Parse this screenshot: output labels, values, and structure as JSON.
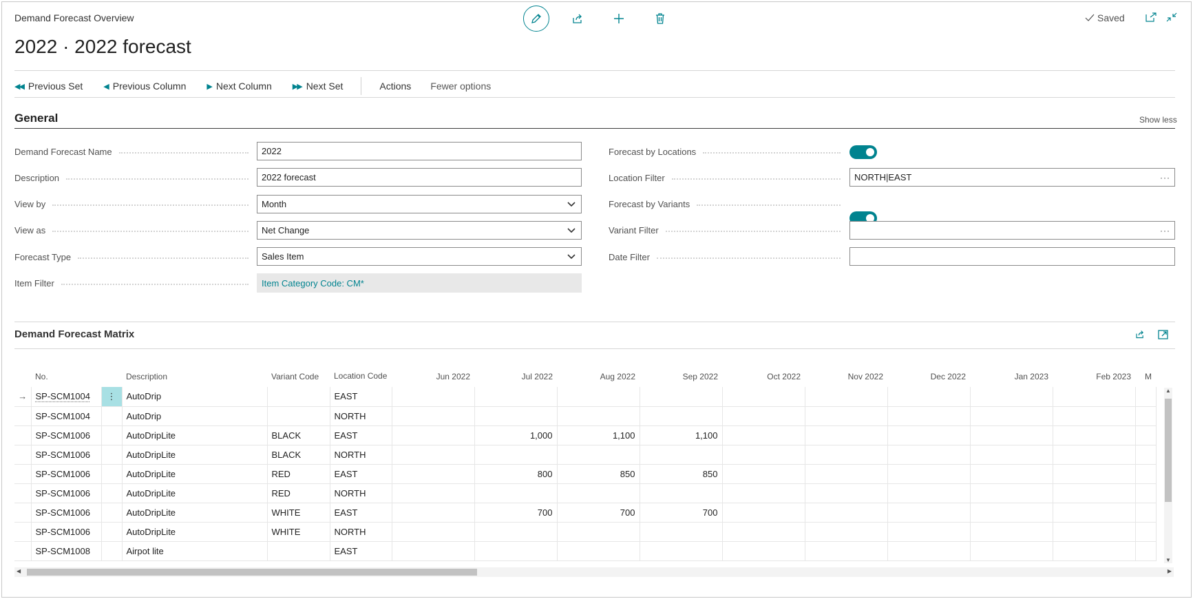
{
  "header": {
    "caption": "Demand Forecast Overview",
    "title": "2022 · 2022 forecast",
    "saved_label": "Saved"
  },
  "actions": {
    "previous_set": "Previous Set",
    "previous_column": "Previous Column",
    "next_column": "Next Column",
    "next_set": "Next Set",
    "actions": "Actions",
    "fewer_options": "Fewer options"
  },
  "general": {
    "title": "General",
    "show_less": "Show less",
    "left": [
      {
        "label": "Demand Forecast Name",
        "value": "2022",
        "kind": "text"
      },
      {
        "label": "Description",
        "value": "2022 forecast",
        "kind": "text"
      },
      {
        "label": "View by",
        "value": "Month",
        "kind": "select"
      },
      {
        "label": "View as",
        "value": "Net Change",
        "kind": "select"
      },
      {
        "label": "Forecast Type",
        "value": "Sales Item",
        "kind": "select"
      },
      {
        "label": "Item Filter",
        "value": "Item Category Code: CM*",
        "kind": "readonly"
      }
    ],
    "right": [
      {
        "label": "Forecast by Locations",
        "value": "on",
        "kind": "toggle"
      },
      {
        "label": "Location Filter",
        "value": "NORTH|EAST",
        "kind": "lookup"
      },
      {
        "label": "Forecast by Variants",
        "value": "on",
        "kind": "toggle"
      },
      {
        "label": "Variant Filter",
        "value": "",
        "kind": "lookup"
      },
      {
        "label": "Date Filter",
        "value": "",
        "kind": "text"
      }
    ]
  },
  "matrix": {
    "title": "Demand Forecast Matrix",
    "columns": {
      "no": "No.",
      "description": "Description",
      "variant": "Variant Code",
      "location": "Location Code",
      "months": [
        "Jun 2022",
        "Jul 2022",
        "Aug 2022",
        "Sep 2022",
        "Oct 2022",
        "Nov 2022",
        "Dec 2022",
        "Jan 2023",
        "Feb 2023",
        "M"
      ]
    },
    "rows": [
      {
        "no": "SP-SCM1004",
        "description": "AutoDrip",
        "variant": "",
        "location": "EAST",
        "values": [
          "",
          "",
          "",
          "",
          "",
          "",
          "",
          "",
          ""
        ]
      },
      {
        "no": "SP-SCM1004",
        "description": "AutoDrip",
        "variant": "",
        "location": "NORTH",
        "values": [
          "",
          "",
          "",
          "",
          "",
          "",
          "",
          "",
          ""
        ]
      },
      {
        "no": "SP-SCM1006",
        "description": "AutoDripLite",
        "variant": "BLACK",
        "location": "EAST",
        "values": [
          "",
          "1,000",
          "1,100",
          "1,100",
          "",
          "",
          "",
          "",
          ""
        ]
      },
      {
        "no": "SP-SCM1006",
        "description": "AutoDripLite",
        "variant": "BLACK",
        "location": "NORTH",
        "values": [
          "",
          "",
          "",
          "",
          "",
          "",
          "",
          "",
          ""
        ]
      },
      {
        "no": "SP-SCM1006",
        "description": "AutoDripLite",
        "variant": "RED",
        "location": "EAST",
        "values": [
          "",
          "800",
          "850",
          "850",
          "",
          "",
          "",
          "",
          ""
        ]
      },
      {
        "no": "SP-SCM1006",
        "description": "AutoDripLite",
        "variant": "RED",
        "location": "NORTH",
        "values": [
          "",
          "",
          "",
          "",
          "",
          "",
          "",
          "",
          ""
        ]
      },
      {
        "no": "SP-SCM1006",
        "description": "AutoDripLite",
        "variant": "WHITE",
        "location": "EAST",
        "values": [
          "",
          "700",
          "700",
          "700",
          "",
          "",
          "",
          "",
          ""
        ]
      },
      {
        "no": "SP-SCM1006",
        "description": "AutoDripLite",
        "variant": "WHITE",
        "location": "NORTH",
        "values": [
          "",
          "",
          "",
          "",
          "",
          "",
          "",
          "",
          ""
        ]
      },
      {
        "no": "SP-SCM1008",
        "description": "Airpot lite",
        "variant": "",
        "location": "EAST",
        "values": [
          "",
          "",
          "",
          "",
          "",
          "",
          "",
          "",
          ""
        ]
      }
    ]
  },
  "colors": {
    "accent": "#00838f",
    "selected_cell": "#a8e0e4",
    "readonly_bg": "#e8e8e8"
  },
  "icons": [
    "edit-icon",
    "share-icon",
    "plus-icon",
    "delete-icon",
    "checkmark-icon",
    "open-new-window-icon",
    "collapse-icon"
  ]
}
